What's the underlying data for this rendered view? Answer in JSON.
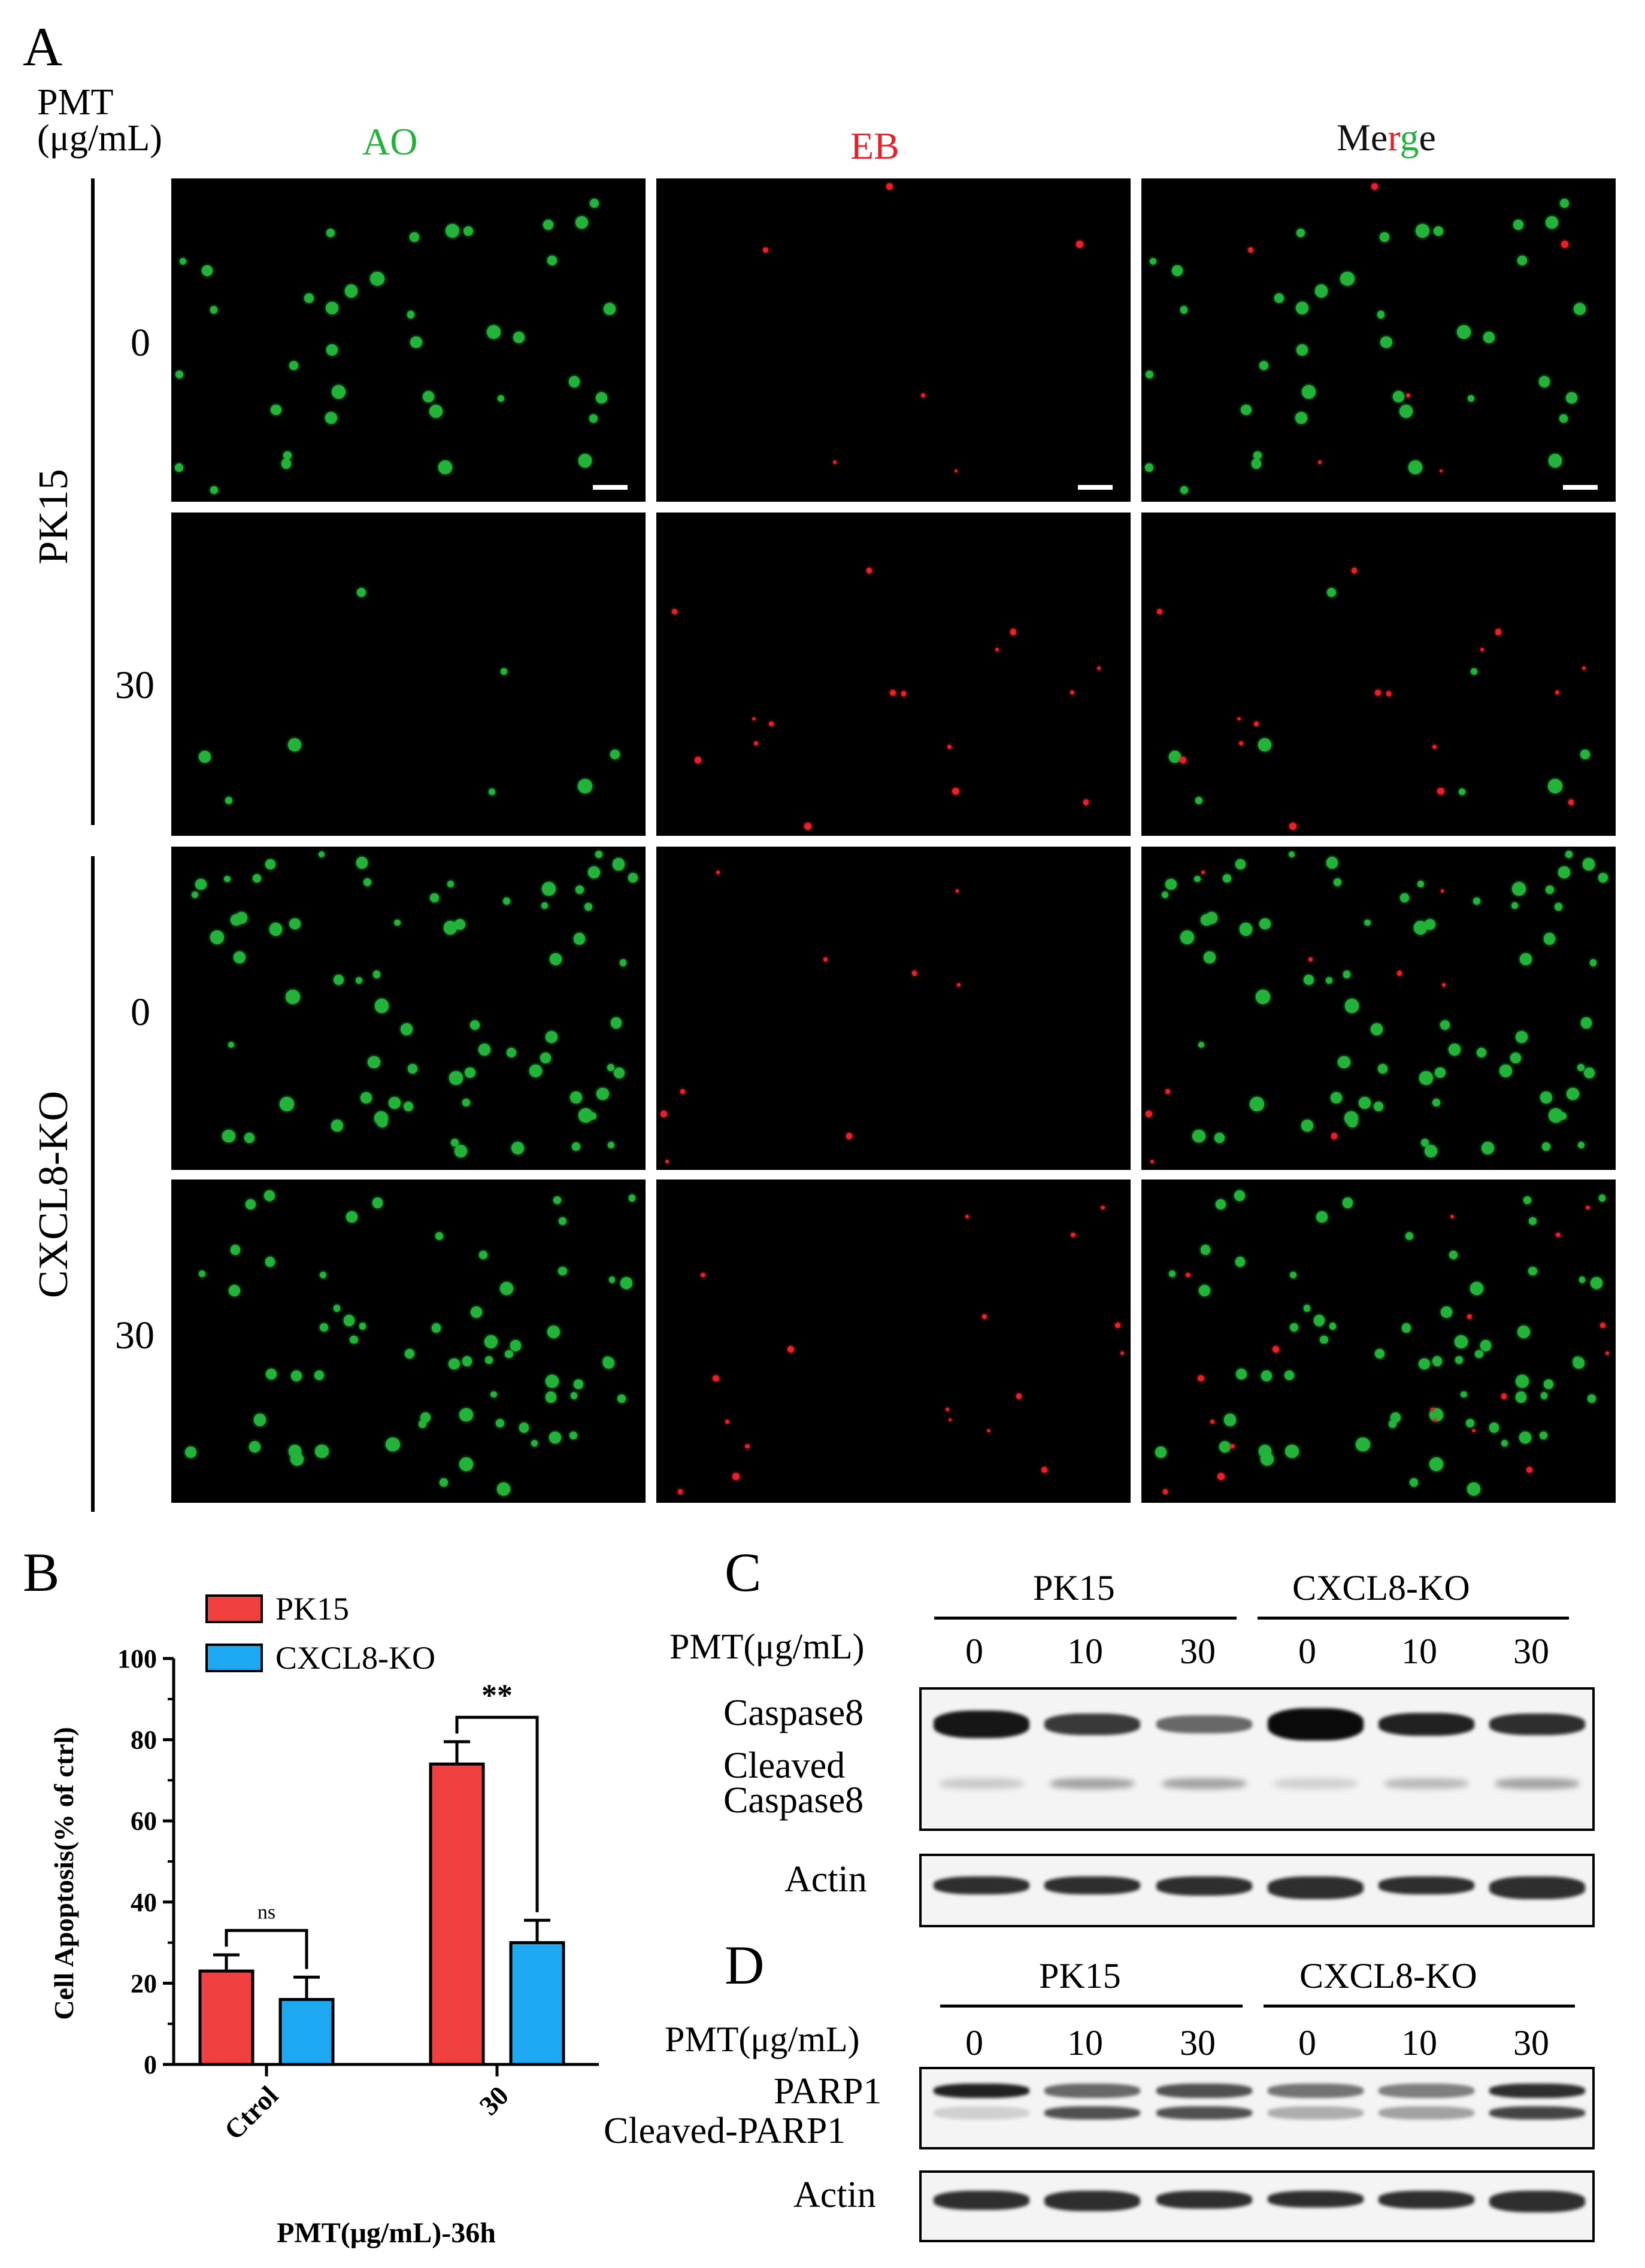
{
  "panelA": {
    "letter": "A",
    "dose_header_line1": "PMT",
    "dose_header_line2": "(μg/mL)",
    "columns": [
      "AO",
      "EB",
      "Merge"
    ],
    "merge_letters": [
      {
        "ch": "M",
        "color": "#111111"
      },
      {
        "ch": "e",
        "color": "#111111"
      },
      {
        "ch": "r",
        "color": "#e8202a"
      },
      {
        "ch": "g",
        "color": "#23b23a"
      },
      {
        "ch": "e",
        "color": "#111111"
      }
    ],
    "ao_color": "#23b23a",
    "eb_color": "#e8202a",
    "groups": [
      "PK15",
      "CXCL8-KO"
    ],
    "rows": [
      "0",
      "30",
      "0",
      "30"
    ]
  },
  "panelB": {
    "letter": "B",
    "chart_data": {
      "type": "bar",
      "categories": [
        "Ctrol",
        "30"
      ],
      "series": [
        {
          "name": "PK15",
          "values": [
            23,
            74
          ],
          "errors": [
            4,
            5.5
          ],
          "color": "#f04040"
        },
        {
          "name": "CXCL8-KO",
          "values": [
            16,
            30
          ],
          "errors": [
            5.5,
            5.5
          ],
          "color": "#1fa8f2"
        }
      ],
      "ylabel": "Cell Apoptosis(% of ctrl)",
      "xlabel": "PMT(μg/mL)-36h",
      "ylim": [
        0,
        100
      ],
      "yticks": [
        "0",
        "20",
        "40",
        "60",
        "80",
        "100"
      ],
      "annotations": [
        {
          "category": "Ctrol",
          "text": "ns"
        },
        {
          "category": "30",
          "text": "**"
        }
      ],
      "legend": "top-left"
    }
  },
  "panelC": {
    "letter": "C",
    "groups": [
      "PK15",
      "CXCL8-KO"
    ],
    "dose_label": "PMT(μg/mL)",
    "doses": [
      "0",
      "10",
      "30",
      "0",
      "10",
      "30"
    ],
    "labels": {
      "caspase": "Caspase8",
      "cleaved1": "Cleaved",
      "cleaved2": "Caspase8",
      "actin": "Actin"
    }
  },
  "panelD": {
    "letter": "D",
    "groups": [
      "PK15",
      "CXCL8-KO"
    ],
    "dose_label": "PMT(μg/mL)",
    "doses": [
      "0",
      "10",
      "30",
      "0",
      "10",
      "30"
    ],
    "labels": {
      "parp": "PARP1",
      "cleaved": "Cleaved-PARP1",
      "actin": "Actin"
    }
  }
}
